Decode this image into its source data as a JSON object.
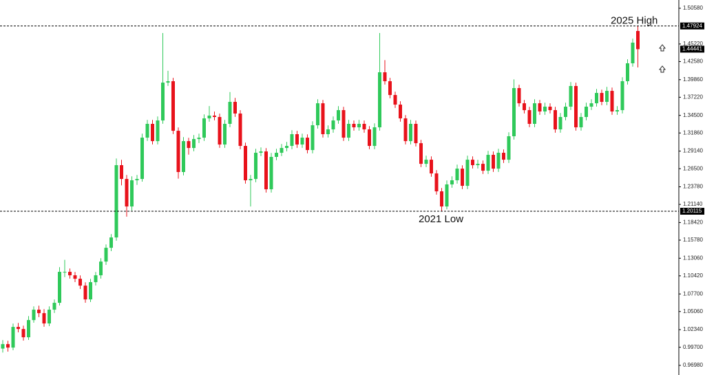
{
  "chart_data": {
    "type": "candlestick",
    "up_color": "#2fc95a",
    "down_color": "#e8121b",
    "ylim": [
      0.9698,
      1.5058
    ],
    "yticks": [
      {
        "value": 1.5058,
        "label": "1.50580"
      },
      {
        "value": 1.4522,
        "label": "1.45220"
      },
      {
        "value": 1.4258,
        "label": "1.42580"
      },
      {
        "value": 1.3986,
        "label": "1.39860"
      },
      {
        "value": 1.3722,
        "label": "1.37220"
      },
      {
        "value": 1.345,
        "label": "1.34500"
      },
      {
        "value": 1.3186,
        "label": "1.31860"
      },
      {
        "value": 1.2914,
        "label": "1.29140"
      },
      {
        "value": 1.265,
        "label": "1.26500"
      },
      {
        "value": 1.2378,
        "label": "1.23780"
      },
      {
        "value": 1.2114,
        "label": "1.21140"
      },
      {
        "value": 1.1842,
        "label": "1.18420"
      },
      {
        "value": 1.1578,
        "label": "1.15780"
      },
      {
        "value": 1.1306,
        "label": "1.13060"
      },
      {
        "value": 1.1042,
        "label": "1.10420"
      },
      {
        "value": 1.077,
        "label": "1.07700"
      },
      {
        "value": 1.0506,
        "label": "1.05060"
      },
      {
        "value": 1.0234,
        "label": "1.02340"
      },
      {
        "value": 0.997,
        "label": "0.99700"
      },
      {
        "value": 0.9698,
        "label": "0.96980"
      }
    ],
    "hlines": [
      {
        "value": 1.47924,
        "annotation": "2025 High"
      },
      {
        "value": 1.20115,
        "annotation": "2021 Low"
      }
    ],
    "last_price": 1.44441,
    "open": [
      0.995,
      1.0017,
      0.9965,
      1.0275,
      1.0244,
      1.012,
      1.0378,
      1.0534,
      1.0482,
      1.0327,
      1.0534,
      1.0637,
      1.1102,
      1.1102,
      1.105,
      1.0998,
      1.0895,
      1.0688,
      1.0947,
      1.105,
      1.1256,
      1.1463,
      1.1618,
      1.2703,
      1.2496,
      1.2083,
      1.2476,
      1.2496,
      1.3116,
      1.3323,
      1.3064,
      1.3374,
      1.3942,
      1.3963,
      1.3219,
      1.26,
      1.3064,
      1.2961,
      1.3095,
      1.3116,
      1.3405,
      1.3447,
      1.3426,
      1.3013,
      1.3323,
      1.3653,
      1.3478,
      1.2992,
      1.2476,
      1.2496,
      1.2889,
      1.2909,
      1.2341,
      1.2827,
      1.2889,
      1.2961,
      1.2992,
      1.3168,
      1.3013,
      1.3116,
      1.293,
      1.3302,
      1.3632,
      1.3168,
      1.324,
      1.3374,
      1.3529,
      1.3116,
      1.3323,
      1.3271,
      1.3323,
      1.324,
      1.2992,
      1.3271,
      1.4097,
      1.3963,
      1.3756,
      1.3612,
      1.3405,
      1.3064,
      1.3323,
      1.3033,
      1.2723,
      1.2785,
      1.2579,
      1.231,
      1.2083,
      1.2414,
      1.2476,
      1.2651,
      1.2393,
      1.2785,
      1.2703,
      1.2723,
      1.262,
      1.2858,
      1.2651,
      1.2889,
      1.2785,
      1.3137,
      1.386,
      1.3632,
      1.3529,
      1.3323,
      1.3632,
      1.3509,
      1.3581,
      1.3529,
      1.324,
      1.3426,
      1.3581,
      1.3891,
      1.3271,
      1.3426,
      1.3581,
      1.3632,
      1.3787,
      1.3653,
      1.3818,
      1.3509,
      1.3529,
      1.3963,
      1.4232,
      1.4717
    ],
    "high": [
      1.0077,
      1.0067,
      1.0325,
      1.0335,
      1.0294,
      1.0438,
      1.0584,
      1.0594,
      1.0542,
      1.0584,
      1.0687,
      1.1172,
      1.1282,
      1.1152,
      1.11,
      1.1048,
      1.0945,
      1.0997,
      1.11,
      1.1306,
      1.1513,
      1.1668,
      1.2803,
      1.2783,
      1.2556,
      1.2536,
      1.2556,
      1.3176,
      1.3383,
      1.3383,
      1.3434,
      1.4686,
      1.412,
      1.4013,
      1.3269,
      1.3124,
      1.3114,
      1.3155,
      1.3176,
      1.3465,
      1.359,
      1.3507,
      1.3476,
      1.3383,
      1.38,
      1.3713,
      1.3528,
      1.3042,
      1.2556,
      1.2949,
      1.2969,
      1.2959,
      1.2887,
      1.2949,
      1.3021,
      1.3052,
      1.3228,
      1.3218,
      1.3176,
      1.3166,
      1.3362,
      1.3692,
      1.3682,
      1.33,
      1.3434,
      1.3589,
      1.3579,
      1.3383,
      1.3373,
      1.3383,
      1.3373,
      1.329,
      1.3331,
      1.4686,
      1.428,
      1.4013,
      1.3806,
      1.3662,
      1.3455,
      1.3383,
      1.3373,
      1.3083,
      1.2845,
      1.2835,
      1.2629,
      1.236,
      1.2474,
      1.2536,
      1.2711,
      1.2701,
      1.2845,
      1.2835,
      1.2783,
      1.2773,
      1.2918,
      1.2908,
      1.2949,
      1.2939,
      1.3197,
      1.399,
      1.391,
      1.3682,
      1.3579,
      1.3692,
      1.3682,
      1.3641,
      1.3631,
      1.3579,
      1.3486,
      1.3641,
      1.3951,
      1.3941,
      1.3486,
      1.3641,
      1.3692,
      1.3847,
      1.3837,
      1.3878,
      1.3868,
      1.3589,
      1.4023,
      1.4292,
      1.4602,
      1.4792
    ],
    "low": [
      0.989,
      0.9905,
      0.9925,
      1.0194,
      1.007,
      1.008,
      1.0338,
      1.0422,
      1.0277,
      1.0287,
      1.0484,
      1.0597,
      1.1022,
      1.1,
      1.0948,
      1.0845,
      1.0638,
      1.0648,
      1.0897,
      1.1,
      1.1206,
      1.1413,
      1.1568,
      1.24,
      1.193,
      1.2023,
      1.2406,
      1.2456,
      1.3066,
      1.3014,
      1.3014,
      1.3324,
      1.3892,
      1.3169,
      1.25,
      1.255,
      1.2861,
      1.2911,
      1.3035,
      1.3066,
      1.3355,
      1.3376,
      1.2963,
      1.2963,
      1.3273,
      1.3428,
      1.2942,
      1.2426,
      1.2083,
      1.2446,
      1.2839,
      1.2291,
      1.2291,
      1.2777,
      1.2839,
      1.2911,
      1.2942,
      1.2963,
      1.2963,
      1.288,
      1.288,
      1.3252,
      1.3118,
      1.3118,
      1.319,
      1.3324,
      1.3066,
      1.3066,
      1.3221,
      1.3221,
      1.319,
      1.2942,
      1.2942,
      1.3221,
      1.3913,
      1.3706,
      1.3562,
      1.3355,
      1.3014,
      1.3014,
      1.2983,
      1.2673,
      1.2673,
      1.2529,
      1.226,
      1.2012,
      1.204,
      1.2364,
      1.2426,
      1.2343,
      1.2343,
      1.2653,
      1.2653,
      1.257,
      1.257,
      1.2601,
      1.2601,
      1.2735,
      1.2735,
      1.3087,
      1.3582,
      1.3479,
      1.3273,
      1.3273,
      1.3459,
      1.3459,
      1.3479,
      1.319,
      1.319,
      1.3376,
      1.3531,
      1.3221,
      1.3221,
      1.3376,
      1.3531,
      1.3582,
      1.3603,
      1.3603,
      1.3459,
      1.3459,
      1.3479,
      1.3913,
      1.4182,
      1.417
    ],
    "close": [
      1.0017,
      0.9965,
      1.0275,
      1.0244,
      1.012,
      1.0378,
      1.0534,
      1.0482,
      1.0327,
      1.0534,
      1.0637,
      1.1102,
      1.1102,
      1.105,
      1.0998,
      1.0895,
      1.0688,
      1.0947,
      1.105,
      1.1256,
      1.1463,
      1.1618,
      1.2703,
      1.2496,
      1.2083,
      1.2476,
      1.2496,
      1.3116,
      1.3323,
      1.3064,
      1.3374,
      1.3942,
      1.3963,
      1.3219,
      1.26,
      1.3064,
      1.2961,
      1.3095,
      1.3116,
      1.3405,
      1.3447,
      1.3426,
      1.3013,
      1.3323,
      1.3653,
      1.3478,
      1.2992,
      1.2476,
      1.2496,
      1.2889,
      1.2909,
      1.2341,
      1.2827,
      1.2889,
      1.2961,
      1.2992,
      1.3168,
      1.3013,
      1.3116,
      1.293,
      1.3302,
      1.3632,
      1.3168,
      1.324,
      1.3374,
      1.3529,
      1.3116,
      1.3323,
      1.3271,
      1.3323,
      1.324,
      1.2992,
      1.3271,
      1.4097,
      1.3963,
      1.3756,
      1.3612,
      1.3405,
      1.3064,
      1.3323,
      1.3033,
      1.2723,
      1.2785,
      1.2579,
      1.231,
      1.2083,
      1.2414,
      1.2476,
      1.2651,
      1.2393,
      1.2785,
      1.2703,
      1.2723,
      1.262,
      1.2858,
      1.2651,
      1.2889,
      1.2785,
      1.3137,
      1.386,
      1.3632,
      1.3529,
      1.3323,
      1.3632,
      1.3509,
      1.3581,
      1.3529,
      1.324,
      1.3426,
      1.3581,
      1.3891,
      1.3271,
      1.3426,
      1.3581,
      1.3632,
      1.3787,
      1.3653,
      1.3818,
      1.3509,
      1.3529,
      1.3963,
      1.4232,
      1.4542,
      1.4444
    ]
  }
}
